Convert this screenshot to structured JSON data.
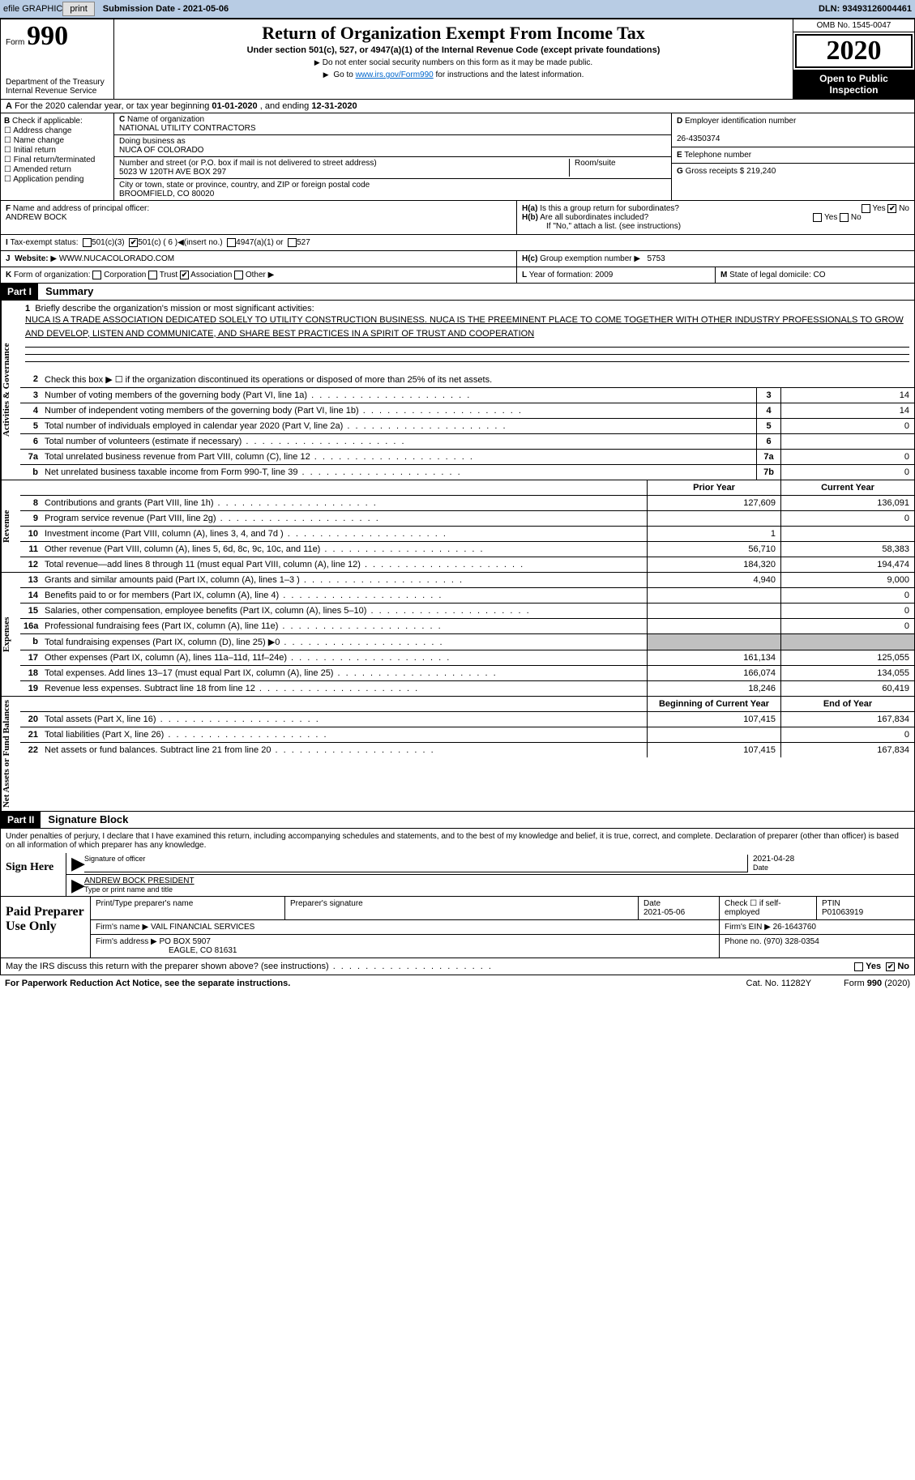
{
  "topbar": {
    "efile_label": "efile GRAPHIC",
    "print_btn": "print",
    "sub_date_label": "Submission Date - ",
    "sub_date": "2021-05-06",
    "dln_label": "DLN: ",
    "dln": "93493126004461"
  },
  "header": {
    "form_label": "Form",
    "form_number": "990",
    "title": "Return of Organization Exempt From Income Tax",
    "subtitle": "Under section 501(c), 527, or 4947(a)(1) of the Internal Revenue Code (except private foundations)",
    "note1": "Do not enter social security numbers on this form as it may be made public.",
    "note2_pre": "Go to ",
    "note2_link": "www.irs.gov/Form990",
    "note2_post": " for instructions and the latest information.",
    "dept": "Department of the Treasury\nInternal Revenue Service",
    "omb": "OMB No. 1545-0047",
    "year": "2020",
    "opi": "Open to Public Inspection"
  },
  "period": {
    "text_pre": "For the 2020 calendar year, or tax year beginning ",
    "begin": "01-01-2020",
    "text_mid": " , and ending ",
    "end": "12-31-2020"
  },
  "boxB": {
    "label": "Check if applicable:",
    "items": [
      "Address change",
      "Name change",
      "Initial return",
      "Final return/terminated",
      "Amended return",
      "Application pending"
    ]
  },
  "boxC": {
    "name_label": "Name of organization",
    "name": "NATIONAL UTILITY CONTRACTORS",
    "dba_label": "Doing business as",
    "dba": "NUCA OF COLORADO",
    "addr_label": "Number and street (or P.O. box if mail is not delivered to street address)",
    "room_label": "Room/suite",
    "addr": "5023 W 120TH AVE BOX 297",
    "city_label": "City or town, state or province, country, and ZIP or foreign postal code",
    "city": "BROOMFIELD, CO  80020"
  },
  "boxD": {
    "label": "Employer identification number",
    "value": "26-4350374"
  },
  "boxE": {
    "label": "Telephone number",
    "value": ""
  },
  "boxG": {
    "label": "Gross receipts $",
    "value": "219,240"
  },
  "boxF": {
    "label": "Name and address of principal officer:",
    "value": "ANDREW BOCK"
  },
  "boxH": {
    "a_label": "Is this a group return for subordinates?",
    "a_yes": "Yes",
    "a_no": "No",
    "a_checked": "No",
    "b_label": "Are all subordinates included?",
    "b_yes": "Yes",
    "b_no": "No",
    "b_note": "If \"No,\" attach a list. (see instructions)",
    "c_label": "Group exemption number",
    "c_value": "5753"
  },
  "boxI": {
    "label": "Tax-exempt status:",
    "opt1": "501(c)(3)",
    "opt2": "501(c) ( 6 )",
    "opt2_suffix": "(insert no.)",
    "opt2_checked": true,
    "opt3": "4947(a)(1) or",
    "opt4": "527"
  },
  "boxJ": {
    "label": "Website:",
    "value": "WWW.NUCACOLORADO.COM"
  },
  "boxK": {
    "label": "Form of organization:",
    "opts": [
      "Corporation",
      "Trust",
      "Association",
      "Other"
    ],
    "checked": "Association"
  },
  "boxL": {
    "label": "Year of formation:",
    "value": "2009"
  },
  "boxM": {
    "label": "State of legal domicile:",
    "value": "CO"
  },
  "part1": {
    "hdr": "Part I",
    "title": "Summary",
    "line1_label": "Briefly describe the organization's mission or most significant activities:",
    "line1_text": "NUCA IS A TRADE ASSOCIATION DEDICATED SOLELY TO UTILITY CONSTRUCTION BUSINESS. NUCA IS THE PREEMINENT PLACE TO COME TOGETHER WITH OTHER INDUSTRY PROFESSIONALS TO GROW AND DEVELOP, LISTEN AND COMMUNICATE, AND SHARE BEST PRACTICES IN A SPIRIT OF TRUST AND COOPERATION",
    "line2": "Check this box ▶ ☐ if the organization discontinued its operations or disposed of more than 25% of its net assets.",
    "vtab_ag": "Activities & Governance",
    "vtab_rev": "Revenue",
    "vtab_exp": "Expenses",
    "vtab_na": "Net Assets or Fund Balances",
    "prior_hdr": "Prior Year",
    "current_hdr": "Current Year",
    "boy_hdr": "Beginning of Current Year",
    "eoy_hdr": "End of Year",
    "lines_gov": [
      {
        "n": "3",
        "t": "Number of voting members of the governing body (Part VI, line 1a)",
        "bn": "3",
        "v": "14"
      },
      {
        "n": "4",
        "t": "Number of independent voting members of the governing body (Part VI, line 1b)",
        "bn": "4",
        "v": "14"
      },
      {
        "n": "5",
        "t": "Total number of individuals employed in calendar year 2020 (Part V, line 2a)",
        "bn": "5",
        "v": "0"
      },
      {
        "n": "6",
        "t": "Total number of volunteers (estimate if necessary)",
        "bn": "6",
        "v": ""
      },
      {
        "n": "7a",
        "t": "Total unrelated business revenue from Part VIII, column (C), line 12",
        "bn": "7a",
        "v": "0"
      },
      {
        "n": "b",
        "t": "Net unrelated business taxable income from Form 990-T, line 39",
        "bn": "7b",
        "v": "0"
      }
    ],
    "lines_rev": [
      {
        "n": "8",
        "t": "Contributions and grants (Part VIII, line 1h)",
        "p": "127,609",
        "c": "136,091"
      },
      {
        "n": "9",
        "t": "Program service revenue (Part VIII, line 2g)",
        "p": "",
        "c": "0"
      },
      {
        "n": "10",
        "t": "Investment income (Part VIII, column (A), lines 3, 4, and 7d )",
        "p": "1",
        "c": ""
      },
      {
        "n": "11",
        "t": "Other revenue (Part VIII, column (A), lines 5, 6d, 8c, 9c, 10c, and 11e)",
        "p": "56,710",
        "c": "58,383"
      },
      {
        "n": "12",
        "t": "Total revenue—add lines 8 through 11 (must equal Part VIII, column (A), line 12)",
        "p": "184,320",
        "c": "194,474"
      }
    ],
    "lines_exp": [
      {
        "n": "13",
        "t": "Grants and similar amounts paid (Part IX, column (A), lines 1–3 )",
        "p": "4,940",
        "c": "9,000"
      },
      {
        "n": "14",
        "t": "Benefits paid to or for members (Part IX, column (A), line 4)",
        "p": "",
        "c": "0"
      },
      {
        "n": "15",
        "t": "Salaries, other compensation, employee benefits (Part IX, column (A), lines 5–10)",
        "p": "",
        "c": "0"
      },
      {
        "n": "16a",
        "t": "Professional fundraising fees (Part IX, column (A), line 11e)",
        "p": "",
        "c": "0"
      },
      {
        "n": "b",
        "t": "Total fundraising expenses (Part IX, column (D), line 25) ▶0",
        "p": "gray",
        "c": "gray"
      },
      {
        "n": "17",
        "t": "Other expenses (Part IX, column (A), lines 11a–11d, 11f–24e)",
        "p": "161,134",
        "c": "125,055"
      },
      {
        "n": "18",
        "t": "Total expenses. Add lines 13–17 (must equal Part IX, column (A), line 25)",
        "p": "166,074",
        "c": "134,055"
      },
      {
        "n": "19",
        "t": "Revenue less expenses. Subtract line 18 from line 12",
        "p": "18,246",
        "c": "60,419"
      }
    ],
    "lines_na": [
      {
        "n": "20",
        "t": "Total assets (Part X, line 16)",
        "p": "107,415",
        "c": "167,834"
      },
      {
        "n": "21",
        "t": "Total liabilities (Part X, line 26)",
        "p": "",
        "c": "0"
      },
      {
        "n": "22",
        "t": "Net assets or fund balances. Subtract line 21 from line 20",
        "p": "107,415",
        "c": "167,834"
      }
    ]
  },
  "part2": {
    "hdr": "Part II",
    "title": "Signature Block",
    "decl": "Under penalties of perjury, I declare that I have examined this return, including accompanying schedules and statements, and to the best of my knowledge and belief, it is true, correct, and complete. Declaration of preparer (other than officer) is based on all information of which preparer has any knowledge.",
    "sign_here": "Sign Here",
    "sig_officer_label": "Signature of officer",
    "date_label": "Date",
    "sig_date": "2021-04-28",
    "officer_name": "ANDREW BOCK PRESIDENT",
    "officer_name_label": "Type or print name and title"
  },
  "paid": {
    "hdr": "Paid Preparer Use Only",
    "prep_name_label": "Print/Type preparer's name",
    "prep_sig_label": "Preparer's signature",
    "prep_date_label": "Date",
    "prep_date": "2021-05-06",
    "check_if_label": "Check ☐ if self-employed",
    "ptin_label": "PTIN",
    "ptin": "P01063919",
    "firm_name_label": "Firm's name",
    "firm_name": "VAIL FINANCIAL SERVICES",
    "firm_ein_label": "Firm's EIN",
    "firm_ein": "26-1643760",
    "firm_addr_label": "Firm's address",
    "firm_addr1": "PO BOX 5907",
    "firm_addr2": "EAGLE, CO  81631",
    "phone_label": "Phone no.",
    "phone": "(970) 328-0354"
  },
  "discuss": {
    "text": "May the IRS discuss this return with the preparer shown above? (see instructions)",
    "yes": "Yes",
    "no": "No",
    "checked": "No"
  },
  "footer": {
    "pra": "For Paperwork Reduction Act Notice, see the separate instructions.",
    "cat": "Cat. No. 11282Y",
    "form": "Form 990 (2020)"
  },
  "colors": {
    "topbar_bg": "#b8cce4",
    "link": "#0066cc",
    "black": "#000000",
    "gray_cell": "#c0c0c0"
  }
}
